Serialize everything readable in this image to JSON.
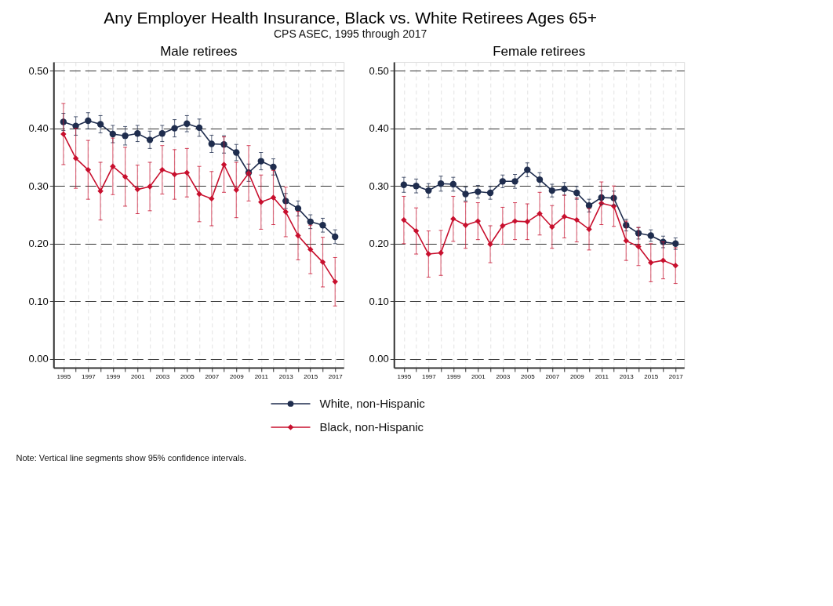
{
  "chart_data": [
    {
      "type": "line",
      "title": "Male retirees",
      "annotations": [
        "Any Employer Health Insurance, Black vs. White Retirees Ages 65+",
        "CPS ASEC, 1995 through 2017",
        "Note: Vertical line segments show 95% confidence intervals."
      ],
      "x": [
        1995,
        1996,
        1997,
        1998,
        1999,
        2000,
        2001,
        2002,
        2003,
        2004,
        2005,
        2006,
        2007,
        2008,
        2009,
        2010,
        2011,
        2012,
        2013,
        2014,
        2015,
        2016,
        2017
      ],
      "series": [
        {
          "name": "White, non-Hispanic",
          "color": "#1f2d4e",
          "marker": "circle",
          "values": [
            0.411,
            0.404,
            0.413,
            0.407,
            0.39,
            0.387,
            0.391,
            0.38,
            0.391,
            0.4,
            0.408,
            0.401,
            0.373,
            0.372,
            0.358,
            0.323,
            0.343,
            0.333,
            0.274,
            0.261,
            0.238,
            0.232,
            0.212
          ],
          "errors": [
            0.015,
            0.016,
            0.014,
            0.015,
            0.015,
            0.016,
            0.014,
            0.015,
            0.014,
            0.015,
            0.014,
            0.015,
            0.015,
            0.015,
            0.014,
            0.015,
            0.015,
            0.014,
            0.013,
            0.013,
            0.012,
            0.012,
            0.012
          ]
        },
        {
          "name": "Black, non-Hispanic",
          "color": "#c8102e",
          "marker": "diamond",
          "values": [
            0.39,
            0.348,
            0.328,
            0.291,
            0.334,
            0.316,
            0.294,
            0.299,
            0.328,
            0.32,
            0.323,
            0.286,
            0.278,
            0.337,
            0.293,
            0.322,
            0.272,
            0.28,
            0.255,
            0.214,
            0.19,
            0.168,
            0.134
          ],
          "errors": [
            0.053,
            0.052,
            0.051,
            0.05,
            0.049,
            0.051,
            0.042,
            0.042,
            0.042,
            0.043,
            0.042,
            0.048,
            0.047,
            0.048,
            0.048,
            0.048,
            0.047,
            0.047,
            0.043,
            0.042,
            0.042,
            0.043,
            0.042
          ]
        }
      ],
      "xlim": [
        1994.2,
        2017.7
      ],
      "ylim": [
        -0.015,
        0.515
      ],
      "xticks": [
        1995,
        {
          "value": 1996,
          "label": null
        },
        1997,
        {
          "value": 1998,
          "label": null
        },
        1999,
        {
          "value": 2000,
          "label": null
        },
        2001,
        {
          "value": 2002,
          "label": null
        },
        2003,
        {
          "value": 2004,
          "label": null
        },
        2005,
        {
          "value": 2006,
          "label": null
        },
        2007,
        {
          "value": 2008,
          "label": null
        },
        2009,
        {
          "value": 2010,
          "label": null
        },
        2011,
        {
          "value": 2012,
          "label": null
        },
        2013,
        {
          "value": 2014,
          "label": null
        },
        2015,
        {
          "value": 2016,
          "label": null
        },
        2017
      ],
      "yticks": [
        {
          "value": 0,
          "label": "0.00"
        },
        {
          "value": 0.1,
          "label": "0.10"
        },
        {
          "value": 0.2,
          "label": "0.20"
        },
        {
          "value": 0.3,
          "label": "0.30"
        },
        {
          "value": 0.4,
          "label": "0.40"
        },
        {
          "value": 0.5,
          "label": "0.50"
        }
      ],
      "grid": true,
      "legend": "bottom"
    },
    {
      "type": "line",
      "title": "Female retirees",
      "x": [
        1995,
        1996,
        1997,
        1998,
        1999,
        2000,
        2001,
        2002,
        2003,
        2004,
        2005,
        2006,
        2007,
        2008,
        2009,
        2010,
        2011,
        2012,
        2013,
        2014,
        2015,
        2016,
        2017
      ],
      "series": [
        {
          "name": "White, non-Hispanic",
          "color": "#1f2d4e",
          "marker": "circle",
          "values": [
            0.302,
            0.3,
            0.292,
            0.304,
            0.303,
            0.286,
            0.29,
            0.288,
            0.308,
            0.308,
            0.328,
            0.311,
            0.292,
            0.295,
            0.288,
            0.266,
            0.28,
            0.279,
            0.232,
            0.218,
            0.214,
            0.203,
            0.2
          ],
          "errors": [
            0.013,
            0.012,
            0.012,
            0.013,
            0.012,
            0.012,
            0.011,
            0.011,
            0.011,
            0.012,
            0.012,
            0.012,
            0.011,
            0.011,
            0.011,
            0.011,
            0.012,
            0.012,
            0.01,
            0.01,
            0.01,
            0.01,
            0.01
          ]
        },
        {
          "name": "Black, non-Hispanic",
          "color": "#c8102e",
          "marker": "diamond",
          "values": [
            0.241,
            0.222,
            0.182,
            0.184,
            0.243,
            0.232,
            0.239,
            0.199,
            0.231,
            0.239,
            0.238,
            0.252,
            0.229,
            0.247,
            0.241,
            0.225,
            0.27,
            0.265,
            0.205,
            0.195,
            0.167,
            0.171,
            0.162
          ],
          "errors": [
            0.041,
            0.04,
            0.04,
            0.039,
            0.039,
            0.04,
            0.032,
            0.032,
            0.032,
            0.032,
            0.031,
            0.037,
            0.037,
            0.037,
            0.038,
            0.036,
            0.037,
            0.035,
            0.034,
            0.033,
            0.033,
            0.032,
            0.031
          ]
        }
      ],
      "xlim": [
        1994.2,
        2017.7
      ],
      "ylim": [
        -0.015,
        0.515
      ],
      "xticks": [
        1995,
        {
          "value": 1996,
          "label": null
        },
        1997,
        {
          "value": 1998,
          "label": null
        },
        1999,
        {
          "value": 2000,
          "label": null
        },
        2001,
        {
          "value": 2002,
          "label": null
        },
        2003,
        {
          "value": 2004,
          "label": null
        },
        2005,
        {
          "value": 2006,
          "label": null
        },
        2007,
        {
          "value": 2008,
          "label": null
        },
        2009,
        {
          "value": 2010,
          "label": null
        },
        2011,
        {
          "value": 2012,
          "label": null
        },
        2013,
        {
          "value": 2014,
          "label": null
        },
        2015,
        {
          "value": 2016,
          "label": null
        },
        2017
      ],
      "yticks": [
        {
          "value": 0,
          "label": "0.00"
        },
        {
          "value": 0.1,
          "label": "0.10"
        },
        {
          "value": 0.2,
          "label": "0.20"
        },
        {
          "value": 0.3,
          "label": "0.30"
        },
        {
          "value": 0.4,
          "label": "0.40"
        },
        {
          "value": 0.5,
          "label": "0.50"
        }
      ],
      "grid": true,
      "legend": "bottom"
    }
  ]
}
